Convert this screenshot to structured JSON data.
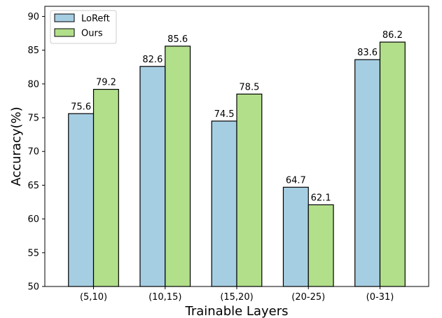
{
  "chart_data": {
    "type": "bar",
    "xlabel": "Trainable Layers",
    "ylabel": "Accuracy(%)",
    "ylim": [
      50,
      91.5
    ],
    "yticks": [
      50,
      55,
      60,
      65,
      70,
      75,
      80,
      85,
      90
    ],
    "categories": [
      "(5,10)",
      "(10,15)",
      "(15,20)",
      "(20-25)",
      "(0-31)"
    ],
    "series": [
      {
        "name": "LoReft",
        "color": "#a6cee3",
        "values": [
          75.6,
          82.6,
          74.5,
          64.7,
          83.6
        ]
      },
      {
        "name": "Ours",
        "color": "#b2df8a",
        "values": [
          79.2,
          85.6,
          78.5,
          62.1,
          86.2
        ]
      }
    ],
    "legend": "top-left",
    "grid": false
  }
}
